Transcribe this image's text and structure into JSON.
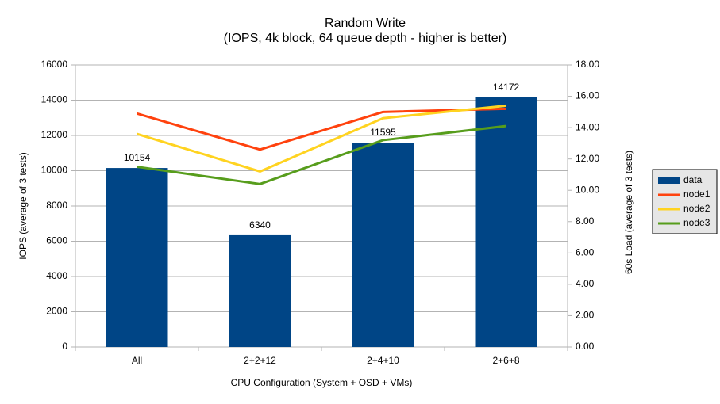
{
  "chart_data": {
    "type": "bar",
    "title": "Random Write",
    "subtitle": "(IOPS, 4k block, 64 queue depth - higher is better)",
    "x_label": "CPU Configuration (System + OSD + VMs)",
    "y_label": "IOPS (average of 3 tests)",
    "y2_label": "60s Load (average of 3 tests)",
    "categories": [
      "All",
      "2+2+12",
      "2+4+10",
      "2+6+8"
    ],
    "series": [
      {
        "name": "data",
        "type": "bar",
        "color": "#004586",
        "values": [
          10154,
          6340,
          11595,
          14172
        ]
      },
      {
        "name": "node1",
        "type": "line",
        "axis": "y2",
        "color": "#ff420e",
        "values": [
          14.9,
          12.6,
          15.0,
          15.2
        ]
      },
      {
        "name": "node2",
        "type": "line",
        "axis": "y2",
        "color": "#ffd320",
        "values": [
          13.6,
          11.2,
          14.6,
          15.4
        ]
      },
      {
        "name": "node3",
        "type": "line",
        "axis": "y2",
        "color": "#579d1c",
        "values": [
          11.5,
          10.4,
          13.2,
          14.1
        ]
      }
    ],
    "ylim": [
      0,
      16000
    ],
    "yticks": [
      0,
      2000,
      4000,
      6000,
      8000,
      10000,
      12000,
      14000,
      16000
    ],
    "y2lim": [
      0,
      18
    ],
    "y2ticks": [
      {
        "value": 0,
        "label": "0.00"
      },
      {
        "value": 2,
        "label": "2.00"
      },
      {
        "value": 4,
        "label": "4.00"
      },
      {
        "value": 6,
        "label": "6.00"
      },
      {
        "value": 8,
        "label": "8.00"
      },
      {
        "value": 10,
        "label": "10.00"
      },
      {
        "value": 12,
        "label": "12.00"
      },
      {
        "value": 14,
        "label": "14.00"
      },
      {
        "value": 16,
        "label": "16.00"
      },
      {
        "value": 18,
        "label": "18.00"
      }
    ],
    "grid": true,
    "legend": "right"
  }
}
